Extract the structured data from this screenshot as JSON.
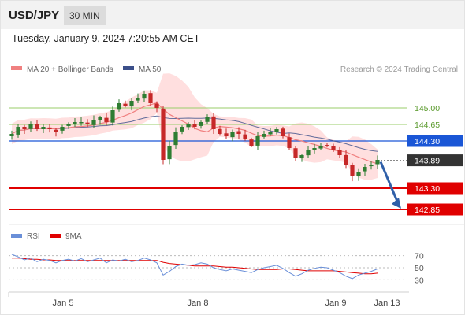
{
  "header": {
    "pair": "USD/JPY",
    "timeframe": "30 MIN"
  },
  "datetime": "Tuesday, January 9, 2024 7:20:55 AM CET",
  "legend": {
    "ma20_label": "MA 20 + Bollinger Bands",
    "ma50_label": "MA 50",
    "credit": "Research © 2024 Trading Central"
  },
  "rsi_legend": {
    "rsi_label": "RSI",
    "ma_label": "9MA"
  },
  "colors": {
    "ma20": "#f08080",
    "bollinger_fill": "#ffd6d6",
    "ma50": "#3b4f8a",
    "bull": "#2e7d32",
    "bear": "#c62828",
    "level_green": "#9acd68",
    "level_blue": "#1a56d6",
    "level_red": "#e00000",
    "current_price": "#333333",
    "arrow": "#2f5fa8",
    "rsi": "#6a8fd8",
    "rsi_ma": "#e00000"
  },
  "chart_data": [
    {
      "type": "candlestick",
      "title": "",
      "x_ticks": [
        "Jan 5",
        "Jan 8",
        "Jan 9",
        "Jan 13"
      ],
      "ylim": [
        142.6,
        145.6
      ],
      "levels": [
        {
          "value": 145.0,
          "label": "145.00",
          "style": "green-line"
        },
        {
          "value": 144.65,
          "label": "144.65",
          "style": "green-line"
        },
        {
          "value": 144.3,
          "label": "144.30",
          "style": "blue-line"
        },
        {
          "value": 143.89,
          "label": "143.89",
          "style": "current-price"
        },
        {
          "value": 143.3,
          "label": "143.30",
          "style": "red-line"
        },
        {
          "value": 142.85,
          "label": "142.85",
          "style": "red-line"
        }
      ],
      "forecast_arrow": {
        "from": 143.89,
        "to": 142.85
      },
      "close_path": [
        144.45,
        144.6,
        144.55,
        144.65,
        144.55,
        144.6,
        144.55,
        144.5,
        144.6,
        144.65,
        144.7,
        144.7,
        144.65,
        144.75,
        144.8,
        144.7,
        144.95,
        145.1,
        145.05,
        145.15,
        145.2,
        145.3,
        145.1,
        145.0,
        143.9,
        144.2,
        144.5,
        144.6,
        144.65,
        144.6,
        144.7,
        144.8,
        144.55,
        144.45,
        144.4,
        144.5,
        144.45,
        144.35,
        144.2,
        144.4,
        144.45,
        144.5,
        144.55,
        144.4,
        144.15,
        143.95,
        144.0,
        144.1,
        144.15,
        144.2,
        144.2,
        144.1,
        144.0,
        143.8,
        143.55,
        143.65,
        143.75,
        143.8,
        143.9
      ]
    },
    {
      "type": "line",
      "title": "",
      "yticks": [
        70,
        50,
        30
      ],
      "ylim": [
        15,
        85
      ],
      "series": [
        {
          "name": "RSI",
          "values": [
            72,
            68,
            63,
            66,
            60,
            64,
            62,
            58,
            62,
            64,
            61,
            65,
            60,
            63,
            66,
            58,
            63,
            61,
            64,
            60,
            62,
            66,
            63,
            58,
            38,
            44,
            52,
            56,
            54,
            55,
            58,
            56,
            50,
            47,
            45,
            48,
            46,
            44,
            42,
            47,
            50,
            52,
            54,
            49,
            42,
            36,
            40,
            46,
            49,
            51,
            50,
            46,
            42,
            36,
            32,
            38,
            41,
            44,
            48
          ]
        },
        {
          "name": "9MA",
          "values": [
            66,
            66,
            65,
            64,
            64,
            63,
            63,
            62,
            62,
            62,
            62,
            62,
            62,
            62,
            62,
            62,
            62,
            62,
            62,
            62,
            62,
            62,
            62,
            62,
            59,
            57,
            56,
            55,
            54,
            53,
            53,
            53,
            53,
            52,
            51,
            51,
            50,
            49,
            48,
            47,
            47,
            47,
            47,
            48,
            48,
            47,
            46,
            45,
            45,
            45,
            45,
            45,
            44,
            43,
            42,
            41,
            40,
            40,
            41
          ]
        }
      ]
    }
  ]
}
